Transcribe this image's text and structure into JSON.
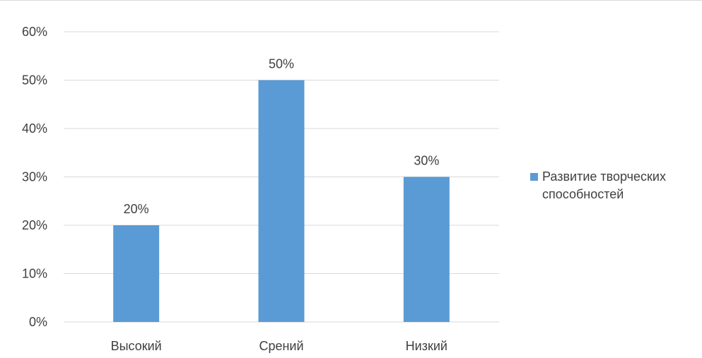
{
  "colors": {
    "bar": "#5b9bd5",
    "grid": "#d9d9d9",
    "text": "#404040"
  },
  "chart_data": {
    "type": "bar",
    "title": "",
    "xlabel": "",
    "ylabel": "",
    "categories": [
      "Высокий",
      "Срений",
      "Низкий"
    ],
    "series": [
      {
        "name": "Развитие творческих способностей",
        "values": [
          20,
          50,
          30
        ],
        "data_labels": [
          "20%",
          "50%",
          "30%"
        ]
      }
    ],
    "ylim": [
      0,
      60
    ],
    "yticks": [
      0,
      10,
      20,
      30,
      40,
      50,
      60
    ],
    "ytick_labels": [
      "0%",
      "10%",
      "20%",
      "30%",
      "40%",
      "50%",
      "60%"
    ],
    "grid": true,
    "legend_position": "right"
  }
}
